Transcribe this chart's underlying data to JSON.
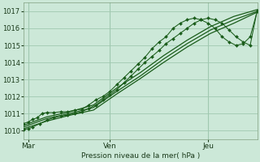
{
  "bg_color": "#cce8d8",
  "grid_color": "#a0c8b0",
  "line_color": "#1a5c1a",
  "marker_color": "#1a5c1a",
  "title": "Pression niveau de la mer( hPa )",
  "ylim": [
    1009.5,
    1017.5
  ],
  "yticks": [
    1010,
    1011,
    1012,
    1013,
    1014,
    1015,
    1016,
    1017
  ],
  "xlim": [
    0,
    1.0
  ],
  "xtick_labels": [
    "Mar",
    "Ven",
    "Jeu"
  ],
  "xtick_positions": [
    0.02,
    0.37,
    0.79
  ],
  "vline_positions": [
    0.02,
    0.37,
    0.79
  ],
  "line1_x": [
    0.0,
    0.02,
    0.04,
    0.06,
    0.08,
    0.1,
    0.13,
    0.16,
    0.19,
    0.22,
    0.25,
    0.28,
    0.31,
    0.34,
    0.37,
    0.4,
    0.43,
    0.46,
    0.49,
    0.52,
    0.55,
    0.58,
    0.61,
    0.64,
    0.67,
    0.7,
    0.73,
    0.76,
    0.79,
    0.82,
    0.85,
    0.88,
    0.91,
    0.94,
    0.97,
    1.0
  ],
  "line1_y": [
    1010.4,
    1010.5,
    1010.65,
    1010.75,
    1011.0,
    1011.05,
    1011.05,
    1011.1,
    1011.1,
    1011.2,
    1011.25,
    1011.5,
    1011.8,
    1012.0,
    1012.3,
    1012.7,
    1013.1,
    1013.5,
    1013.9,
    1014.3,
    1014.8,
    1015.2,
    1015.5,
    1016.0,
    1016.3,
    1016.5,
    1016.6,
    1016.5,
    1016.3,
    1016.0,
    1015.5,
    1015.2,
    1015.0,
    1015.1,
    1015.5,
    1017.0
  ],
  "line2_x": [
    0.0,
    0.02,
    0.04,
    0.07,
    0.1,
    0.13,
    0.16,
    0.19,
    0.22,
    0.25,
    0.28,
    0.31,
    0.34,
    0.37,
    0.4,
    0.43,
    0.46,
    0.49,
    0.52,
    0.55,
    0.58,
    0.61,
    0.64,
    0.67,
    0.7,
    0.73,
    0.76,
    0.79,
    0.82,
    0.85,
    0.88,
    0.91,
    0.94,
    0.97,
    1.0
  ],
  "line2_y": [
    1010.05,
    1010.1,
    1010.2,
    1010.4,
    1010.6,
    1010.75,
    1010.85,
    1010.9,
    1011.0,
    1011.1,
    1011.3,
    1011.5,
    1011.8,
    1012.1,
    1012.4,
    1012.8,
    1013.2,
    1013.6,
    1014.0,
    1014.35,
    1014.7,
    1015.1,
    1015.4,
    1015.7,
    1016.0,
    1016.3,
    1016.5,
    1016.6,
    1016.5,
    1016.3,
    1015.9,
    1015.5,
    1015.2,
    1015.0,
    1017.05
  ],
  "line3_x": [
    0.0,
    0.1,
    0.2,
    0.3,
    0.4,
    0.5,
    0.6,
    0.7,
    0.8,
    0.9,
    1.0
  ],
  "line3_y": [
    1010.3,
    1010.8,
    1011.1,
    1011.5,
    1012.5,
    1013.4,
    1014.4,
    1015.3,
    1016.1,
    1016.7,
    1017.1
  ],
  "line4_x": [
    0.0,
    0.1,
    0.2,
    0.3,
    0.4,
    0.5,
    0.6,
    0.7,
    0.8,
    0.9,
    1.0
  ],
  "line4_y": [
    1010.2,
    1010.7,
    1011.0,
    1011.35,
    1012.3,
    1013.2,
    1014.2,
    1015.1,
    1015.9,
    1016.5,
    1017.0
  ],
  "line5_x": [
    0.0,
    0.1,
    0.2,
    0.3,
    0.4,
    0.5,
    0.6,
    0.7,
    0.8,
    0.9,
    1.0
  ],
  "line5_y": [
    1010.1,
    1010.55,
    1010.9,
    1011.2,
    1012.15,
    1013.05,
    1014.0,
    1014.9,
    1015.7,
    1016.3,
    1016.95
  ]
}
